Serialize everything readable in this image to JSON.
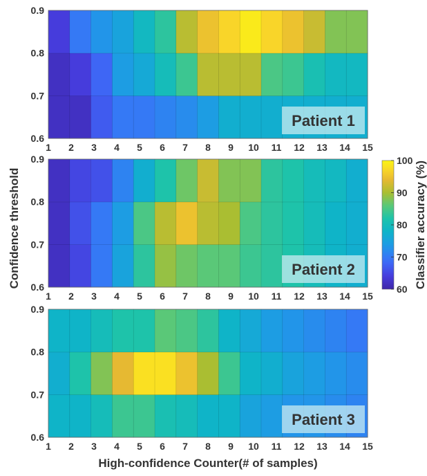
{
  "chart_data": [
    {
      "type": "heatmap",
      "label": "Patient 1",
      "x": [
        1,
        2,
        3,
        4,
        5,
        6,
        7,
        8,
        9,
        10,
        11,
        12,
        13,
        14,
        15
      ],
      "y_edges": [
        0.6,
        0.7,
        0.8,
        0.9
      ],
      "values": [
        [
          62,
          62,
          67,
          70,
          70,
          71,
          72,
          74,
          77,
          77,
          77,
          77,
          77,
          77,
          77
        ],
        [
          62,
          64,
          68,
          74,
          76,
          80,
          84,
          91,
          91,
          91,
          85,
          84,
          81,
          79,
          79
        ],
        [
          64,
          70,
          73,
          75,
          79,
          83,
          91,
          95,
          97,
          99,
          97,
          95,
          92,
          88,
          88
        ]
      ]
    },
    {
      "type": "heatmap",
      "label": "Patient 2",
      "x": [
        1,
        2,
        3,
        4,
        5,
        6,
        7,
        8,
        9,
        10,
        11,
        12,
        13,
        14,
        15
      ],
      "y_edges": [
        0.6,
        0.7,
        0.8,
        0.9
      ],
      "values": [
        [
          62,
          65,
          70,
          75,
          83,
          89,
          87,
          86,
          86,
          84,
          83,
          82,
          80,
          78,
          77
        ],
        [
          62,
          66,
          70,
          74,
          85,
          91,
          95,
          91,
          90,
          85,
          83,
          82,
          80,
          78,
          77
        ],
        [
          62,
          65,
          66,
          71,
          77,
          82,
          87,
          92,
          88,
          88,
          83,
          82,
          80,
          79,
          77
        ]
      ]
    },
    {
      "type": "heatmap",
      "label": "Patient 3",
      "x": [
        1,
        2,
        3,
        4,
        5,
        6,
        7,
        8,
        9,
        10,
        11,
        12,
        13,
        14,
        15
      ],
      "y_edges": [
        0.6,
        0.7,
        0.8,
        0.9
      ],
      "values": [
        [
          78,
          78,
          80,
          84,
          84,
          81,
          80,
          78,
          78,
          75,
          74,
          73,
          73,
          72,
          71
        ],
        [
          77,
          82,
          88,
          94,
          98,
          98,
          95,
          90,
          84,
          78,
          77,
          75,
          74,
          73,
          72
        ],
        [
          78,
          78,
          80,
          82,
          82,
          86,
          85,
          83,
          78,
          76,
          74,
          73,
          72,
          71,
          70
        ]
      ]
    }
  ],
  "x_ticks": [
    "1",
    "2",
    "3",
    "4",
    "5",
    "6",
    "7",
    "8",
    "9",
    "10",
    "11",
    "12",
    "13",
    "14",
    "15"
  ],
  "y_ticks": [
    "0.6",
    "0.7",
    "0.8",
    "0.9"
  ],
  "xlabel": "High-confidence Counter(# of samples)",
  "ylabel": "Confidence threshold",
  "colorbar": {
    "label": "Classifier accuracy (%)",
    "min": 60,
    "max": 100,
    "ticks": [
      "60",
      "70",
      "80",
      "90",
      "100"
    ]
  }
}
